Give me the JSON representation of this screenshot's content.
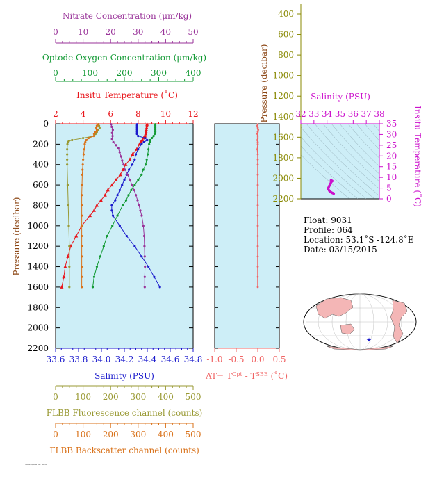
{
  "colors": {
    "nitrate": "#993399",
    "oxygen": "#119933",
    "temperature": "#e8151b",
    "salinity": "#1a1acc",
    "fluorescence": "#999933",
    "backscatter": "#d9721a",
    "delta_t": "#f06464",
    "inset_salinity": "#cc11cc",
    "inset_temperature": "#cc11cc",
    "panel_bg": "#cdeef7",
    "olive_axis": "#888800"
  },
  "main_axes": {
    "pressure_label": "Pressure (decibar)",
    "pressure_ticks": [
      "0",
      "200",
      "400",
      "600",
      "800",
      "1000",
      "1200",
      "1400",
      "1600",
      "1800",
      "2000",
      "2200"
    ],
    "nitrate": {
      "title": "Nitrate Concentration (μm/kg)",
      "ticks": [
        "0",
        "10",
        "20",
        "30",
        "40",
        "50"
      ]
    },
    "oxygen": {
      "title": "Optode Oxygen Concentration (μm/kg)",
      "ticks": [
        "0",
        "100",
        "200",
        "300",
        "400"
      ]
    },
    "temperature": {
      "title": "Insitu Temperature (˚C)",
      "ticks": [
        "2",
        "4",
        "6",
        "8",
        "10",
        "12"
      ]
    },
    "salinity": {
      "title": "Salinity (PSU)",
      "ticks": [
        "33.6",
        "33.8",
        "34.0",
        "34.2",
        "34.4",
        "34.6",
        "34.8"
      ]
    },
    "fluorescence": {
      "title": "FLBB Fluorescence channel (counts)",
      "ticks": [
        "0",
        "100",
        "200",
        "300",
        "400",
        "500"
      ]
    },
    "backscatter": {
      "title": "FLBB Backscatter channel (counts)",
      "ticks": [
        "0",
        "100",
        "200",
        "300",
        "400",
        "500"
      ]
    }
  },
  "delta_axes": {
    "title_main": "AT= T",
    "title_sup1": "Opt",
    "title_mid": " - T",
    "title_sup2": "SBE",
    "title_end": " (˚C)",
    "ticks": [
      "-1.0",
      "-0.5",
      "0.0",
      "0.5"
    ]
  },
  "inset": {
    "pressure_label": "Pressure (decibar)",
    "pressure_ticks": [
      "400",
      "600",
      "800",
      "1000",
      "1200",
      "1400",
      "1600",
      "1800",
      "2000",
      "2200"
    ],
    "salinity_title": "Salinity (PSU)",
    "salinity_ticks": [
      "32",
      "33",
      "34",
      "35",
      "36",
      "37",
      "38"
    ],
    "temperature_title": "Insitu Temperature (˚C)",
    "temperature_ticks": [
      "0",
      "5",
      "10",
      "15",
      "20",
      "25",
      "30",
      "35"
    ]
  },
  "float_info": {
    "float": "Float:  9031",
    "profile": "Profile:  064",
    "location": "Location:  53.1˚S  -124.8˚E",
    "date": "Date:  03/15/2015"
  },
  "footer_text": "MBARI/UW ID: 9031",
  "chart_data": [
    {
      "type": "line",
      "title": "",
      "ylabel": "Pressure (decibar)",
      "ylim": [
        2200,
        0
      ],
      "grid": false,
      "series": [
        {
          "name": "Insitu Temperature (˚C)",
          "xlim": [
            2,
            12
          ],
          "pressure": [
            5,
            20,
            40,
            60,
            80,
            100,
            120,
            140,
            160,
            180,
            200,
            250,
            300,
            350,
            400,
            450,
            500,
            550,
            600,
            650,
            700,
            750,
            800,
            850,
            900,
            1000,
            1100,
            1200,
            1300,
            1400,
            1500,
            1600
          ],
          "values": [
            8.65,
            8.64,
            8.62,
            8.6,
            8.58,
            8.55,
            8.5,
            8.4,
            8.3,
            8.2,
            8.1,
            7.9,
            7.6,
            7.4,
            7.1,
            6.9,
            6.7,
            6.4,
            6.1,
            5.8,
            5.6,
            5.3,
            5.0,
            4.8,
            4.5,
            3.9,
            3.5,
            3.1,
            2.9,
            2.7,
            2.6,
            2.45
          ]
        },
        {
          "name": "Salinity (PSU)",
          "xlim": [
            33.6,
            34.8
          ],
          "pressure": [
            5,
            20,
            40,
            60,
            80,
            100,
            120,
            140,
            160,
            180,
            200,
            250,
            300,
            350,
            400,
            450,
            500,
            550,
            600,
            650,
            700,
            750,
            800,
            850,
            900,
            1000,
            1100,
            1200,
            1300,
            1400,
            1500,
            1600
          ],
          "values": [
            34.31,
            34.31,
            34.31,
            34.31,
            34.31,
            34.31,
            34.32,
            34.38,
            34.4,
            34.37,
            34.35,
            34.32,
            34.3,
            34.29,
            34.27,
            34.24,
            34.22,
            34.2,
            34.18,
            34.16,
            34.14,
            34.12,
            34.09,
            34.09,
            34.1,
            34.16,
            34.22,
            34.29,
            34.35,
            34.41,
            34.46,
            34.51
          ]
        },
        {
          "name": "Optode Oxygen Concentration (μm/kg)",
          "xlim": [
            0,
            400
          ],
          "pressure": [
            5,
            20,
            40,
            60,
            80,
            100,
            120,
            140,
            160,
            180,
            200,
            250,
            300,
            350,
            400,
            450,
            500,
            550,
            600,
            650,
            700,
            750,
            800,
            900,
            1000,
            1100,
            1200,
            1300,
            1400,
            1500,
            1600
          ],
          "values": [
            290,
            290,
            290,
            290,
            290,
            288,
            285,
            280,
            275,
            275,
            272,
            270,
            268,
            265,
            262,
            255,
            250,
            240,
            230,
            220,
            212,
            205,
            195,
            180,
            165,
            150,
            140,
            130,
            120,
            112,
            108
          ]
        },
        {
          "name": "Nitrate Concentration (μm/kg)",
          "xlim": [
            0,
            50
          ],
          "pressure": [
            5,
            30,
            60,
            90,
            120,
            150,
            180,
            210,
            240,
            280,
            320,
            360,
            400,
            450,
            500,
            550,
            600,
            650,
            700,
            750,
            800,
            850,
            900,
            1000,
            1100,
            1200,
            1300,
            1400,
            1500,
            1600
          ],
          "values": [
            20.2,
            20.4,
            20.8,
            20.5,
            20.7,
            20.5,
            21,
            22,
            22.8,
            23.3,
            23.8,
            24.2,
            24.7,
            25.3,
            26.2,
            27,
            27.8,
            28.5,
            29.2,
            29.8,
            30.3,
            30.8,
            31.3,
            31.9,
            32.2,
            32.3,
            32.4,
            32.5,
            32.4,
            32.4
          ]
        },
        {
          "name": "FLBB Fluorescence channel (counts)",
          "xlim": [
            0,
            500
          ],
          "pressure": [
            5,
            20,
            40,
            60,
            80,
            100,
            120,
            140,
            160,
            170,
            180,
            200,
            250,
            300,
            350,
            400,
            600,
            800,
            1000,
            1200,
            1400,
            1600
          ],
          "values": [
            155,
            158,
            160,
            155,
            150,
            145,
            140,
            100,
            60,
            48,
            45,
            43,
            42,
            42,
            42,
            42,
            44,
            46,
            48,
            50,
            50,
            50
          ]
        },
        {
          "name": "FLBB Backscatter channel (counts)",
          "xlim": [
            0,
            500
          ],
          "pressure": [
            5,
            20,
            40,
            60,
            80,
            100,
            120,
            140,
            160,
            180,
            200,
            250,
            300,
            350,
            400,
            450,
            500,
            600,
            700,
            800,
            900,
            1000,
            1100,
            1200,
            1300,
            1400,
            1500,
            1600
          ],
          "values": [
            155,
            150,
            148,
            150,
            145,
            140,
            140,
            120,
            112,
            108,
            106,
            104,
            102,
            100,
            99,
            98,
            97,
            96,
            95,
            95,
            95,
            95,
            95,
            95,
            95,
            95,
            95,
            95
          ]
        }
      ]
    },
    {
      "type": "line",
      "title": "",
      "xlim": [
        -1.0,
        0.5
      ],
      "ylim": [
        2200,
        0
      ],
      "series": [
        {
          "name": "AT",
          "pressure": [
            5,
            20,
            40,
            60,
            80,
            100,
            120,
            140,
            160,
            180,
            200,
            250,
            300,
            350,
            400,
            500,
            600,
            700,
            800,
            900,
            1000,
            1100,
            1200,
            1300,
            1400,
            1500,
            1600
          ],
          "values": [
            0.0,
            -0.01,
            0.0,
            0.01,
            0.0,
            -0.01,
            0.0,
            0.0,
            -0.01,
            0.0,
            0.0,
            -0.01,
            0.0,
            0.0,
            0.0,
            0.0,
            0.0,
            0.0,
            0.0,
            0.0,
            0.0,
            0.0,
            0.0,
            0.0,
            0.0,
            0.0,
            0.0
          ]
        }
      ]
    },
    {
      "type": "scatter",
      "title": "",
      "xlabel": "Salinity (PSU)",
      "ylabel": "Insitu Temperature (˚C)",
      "xlim": [
        32,
        38
      ],
      "ylim": [
        0,
        35
      ],
      "series": [
        {
          "name": "T-S",
          "x": [
            34.31,
            34.31,
            34.32,
            34.38,
            34.4,
            34.37,
            34.35,
            34.3,
            34.27,
            34.22,
            34.18,
            34.14,
            34.09,
            34.1,
            34.16,
            34.22,
            34.29,
            34.35,
            34.41,
            34.46,
            34.51
          ],
          "y": [
            8.65,
            8.6,
            8.5,
            8.4,
            8.3,
            8.2,
            8.1,
            7.6,
            7.1,
            6.7,
            6.1,
            5.6,
            5.0,
            4.5,
            3.9,
            3.5,
            3.1,
            2.9,
            2.7,
            2.6,
            2.45
          ]
        }
      ]
    }
  ]
}
